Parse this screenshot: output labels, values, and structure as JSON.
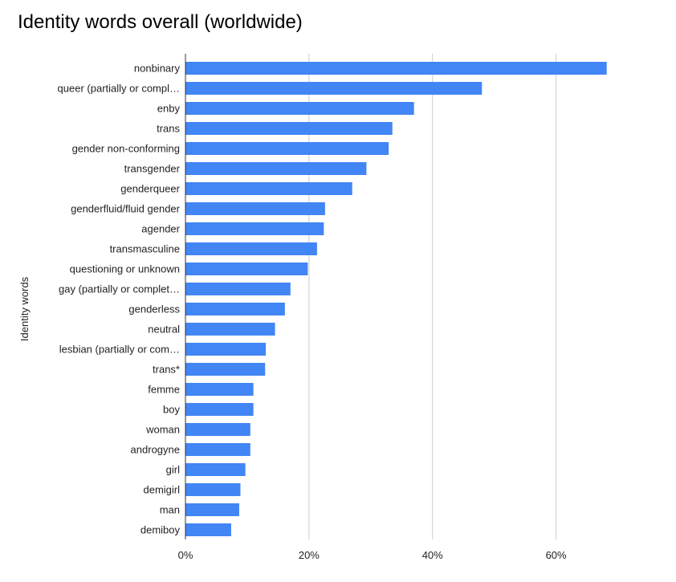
{
  "chart_data": {
    "type": "bar",
    "orientation": "horizontal",
    "title": "Identity words overall (worldwide)",
    "ylabel": "Identity words",
    "xlabel": "",
    "categories": [
      "nonbinary",
      "queer (partially or compl…",
      "enby",
      "trans",
      "gender non-conforming",
      "transgender",
      "genderqueer",
      "genderfluid/fluid gender",
      "agender",
      "transmasculine",
      "questioning or unknown",
      "gay (partially or complet…",
      "genderless",
      "neutral",
      "lesbian (partially or com…",
      "trans*",
      "femme",
      "boy",
      "woman",
      "androgyne",
      "girl",
      "demigirl",
      "man",
      "demiboy"
    ],
    "values": [
      68.2,
      48.0,
      37.0,
      33.5,
      32.9,
      29.3,
      27.0,
      22.6,
      22.4,
      21.3,
      19.8,
      17.0,
      16.1,
      14.5,
      13.0,
      12.9,
      11.0,
      11.0,
      10.5,
      10.5,
      9.7,
      8.9,
      8.7,
      7.4
    ],
    "xlim": [
      0,
      75
    ],
    "xticks": [
      0,
      20,
      40,
      60
    ],
    "xtick_labels": [
      "0%",
      "20%",
      "40%",
      "60%"
    ],
    "grid": true,
    "bar_color": "#4285f4",
    "grid_color": "#cccccc",
    "axis_color": "#333333"
  }
}
